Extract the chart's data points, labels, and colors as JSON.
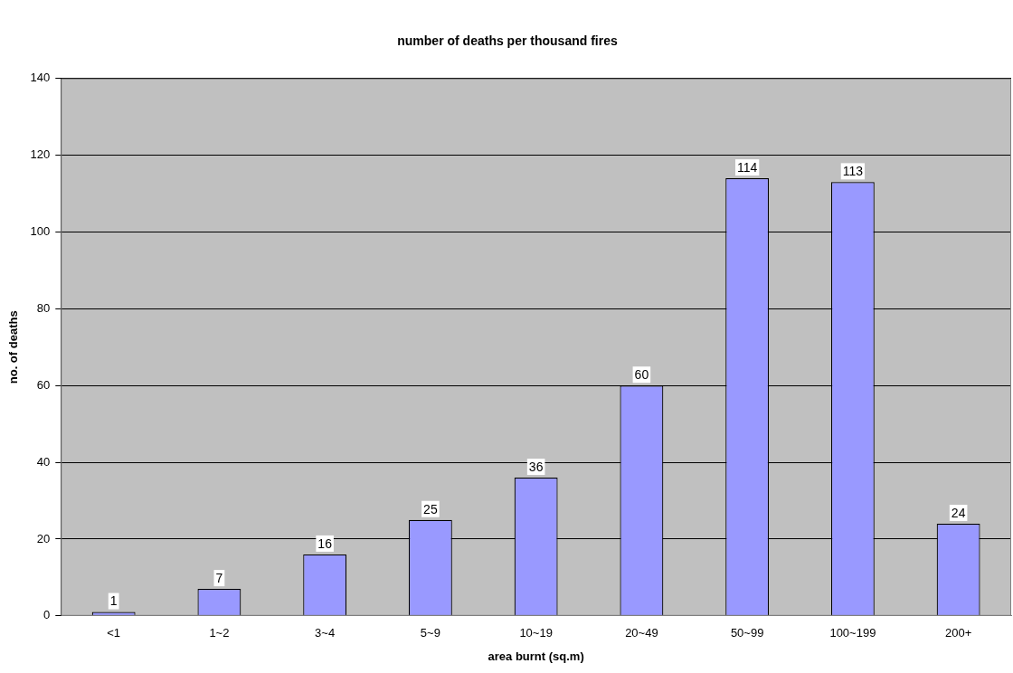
{
  "chart_data": {
    "type": "bar",
    "title": "number of deaths per thousand fires",
    "xlabel": "area burnt (sq.m)",
    "ylabel": "no. of deaths",
    "categories": [
      "<1",
      "1~2",
      "3~4",
      "5~9",
      "10~19",
      "20~49",
      "50~99",
      "100~199",
      "200+"
    ],
    "values": [
      1,
      7,
      16,
      25,
      36,
      60,
      114,
      113,
      24
    ],
    "color": "#9999ff",
    "ylim": [
      0,
      140
    ],
    "yticks": [
      0,
      20,
      40,
      60,
      80,
      100,
      120,
      140
    ],
    "grid": "y",
    "legend": false,
    "data_labels": true
  }
}
